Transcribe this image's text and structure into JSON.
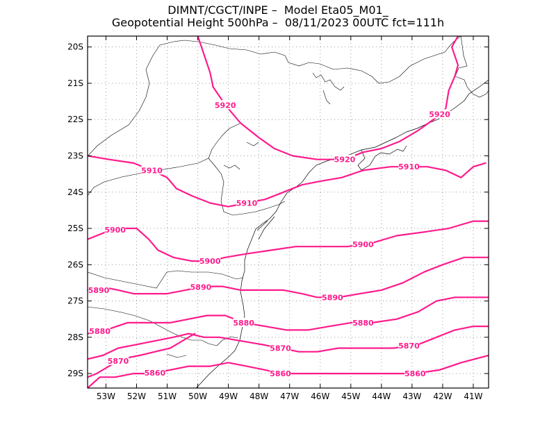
{
  "header": {
    "line1": "DIMNT/CGCT/INPE –  Model Eta05_M01_",
    "line2": "Geopotential Height 500hPa –  08/11/2023 00UTC fct=111h"
  },
  "colors": {
    "contour": "#ff1a8c",
    "coast": "#000000",
    "grid": "#999999"
  },
  "chart_data": {
    "type": "contour-map",
    "title": "Geopotential Height 500hPa",
    "lon_range": [
      -53.6,
      -40.5
    ],
    "lat_range": [
      -29.4,
      -19.7
    ],
    "x_ticks": [
      "53W",
      "52W",
      "51W",
      "50W",
      "49W",
      "48W",
      "47W",
      "46W",
      "45W",
      "44W",
      "43W",
      "42W",
      "41W"
    ],
    "y_ticks": [
      "20S",
      "21S",
      "22S",
      "23S",
      "24S",
      "25S",
      "26S",
      "27S",
      "28S",
      "29S"
    ],
    "contours": [
      {
        "level": 5920,
        "labels": [
          "5920",
          "5920",
          "5920"
        ],
        "points": [
          [
            -50.0,
            -19.7
          ],
          [
            -49.8,
            -20.2
          ],
          [
            -49.6,
            -20.7
          ],
          [
            -49.5,
            -21.1
          ],
          [
            -49.1,
            -21.6
          ],
          [
            -48.6,
            -22.1
          ],
          [
            -48.0,
            -22.5
          ],
          [
            -47.5,
            -22.8
          ],
          [
            -46.9,
            -23.0
          ],
          [
            -46.1,
            -23.1
          ],
          [
            -45.2,
            -23.1
          ],
          [
            -44.6,
            -22.9
          ],
          [
            -44.0,
            -22.8
          ],
          [
            -43.4,
            -22.6
          ],
          [
            -42.8,
            -22.3
          ],
          [
            -42.3,
            -22.0
          ],
          [
            -41.9,
            -21.7
          ],
          [
            -41.8,
            -21.2
          ],
          [
            -41.6,
            -20.8
          ],
          [
            -41.5,
            -20.5
          ],
          [
            -41.7,
            -20.0
          ],
          [
            -41.5,
            -19.7
          ]
        ],
        "label_lon": [
          -49.1,
          -45.2,
          -42.1
        ]
      },
      {
        "level": 5910,
        "labels": [
          "5910",
          "5910",
          "5910"
        ],
        "points": [
          [
            -53.6,
            -23.0
          ],
          [
            -52.9,
            -23.1
          ],
          [
            -52.1,
            -23.2
          ],
          [
            -51.5,
            -23.4
          ],
          [
            -51.0,
            -23.6
          ],
          [
            -50.7,
            -23.9
          ],
          [
            -50.2,
            -24.1
          ],
          [
            -49.6,
            -24.3
          ],
          [
            -49.0,
            -24.4
          ],
          [
            -48.4,
            -24.3
          ],
          [
            -47.8,
            -24.2
          ],
          [
            -47.2,
            -24.0
          ],
          [
            -46.6,
            -23.8
          ],
          [
            -46.0,
            -23.7
          ],
          [
            -45.3,
            -23.6
          ],
          [
            -44.6,
            -23.4
          ],
          [
            -43.7,
            -23.3
          ],
          [
            -43.1,
            -23.3
          ],
          [
            -42.5,
            -23.3
          ],
          [
            -41.9,
            -23.4
          ],
          [
            -41.4,
            -23.6
          ],
          [
            -41.0,
            -23.3
          ],
          [
            -40.6,
            -23.2
          ]
        ],
        "label_lon": [
          -51.5,
          -48.4,
          -43.1
        ]
      },
      {
        "level": 5900,
        "labels": [
          "5900",
          "5900",
          "5900"
        ],
        "points": [
          [
            -53.6,
            -25.3
          ],
          [
            -53.0,
            -25.1
          ],
          [
            -52.5,
            -25.0
          ],
          [
            -52.0,
            -25.0
          ],
          [
            -51.6,
            -25.3
          ],
          [
            -51.3,
            -25.6
          ],
          [
            -50.8,
            -25.8
          ],
          [
            -50.2,
            -25.9
          ],
          [
            -49.6,
            -25.9
          ],
          [
            -49.1,
            -25.8
          ],
          [
            -48.4,
            -25.7
          ],
          [
            -47.6,
            -25.6
          ],
          [
            -46.8,
            -25.5
          ],
          [
            -46.0,
            -25.5
          ],
          [
            -45.1,
            -25.5
          ],
          [
            -44.3,
            -25.4
          ],
          [
            -43.5,
            -25.2
          ],
          [
            -42.6,
            -25.1
          ],
          [
            -41.8,
            -25.0
          ],
          [
            -41.0,
            -24.8
          ],
          [
            -40.5,
            -24.8
          ]
        ],
        "label_lon": [
          -52.7,
          -49.6,
          -44.6
        ]
      },
      {
        "level": 5890,
        "labels": [
          "5890",
          "5890",
          "5890"
        ],
        "points": [
          [
            -53.6,
            -26.7
          ],
          [
            -53.2,
            -26.6
          ],
          [
            -52.6,
            -26.7
          ],
          [
            -52.1,
            -26.8
          ],
          [
            -51.6,
            -26.8
          ],
          [
            -51.0,
            -26.8
          ],
          [
            -50.4,
            -26.7
          ],
          [
            -49.8,
            -26.6
          ],
          [
            -49.2,
            -26.6
          ],
          [
            -48.6,
            -26.7
          ],
          [
            -47.9,
            -26.7
          ],
          [
            -47.2,
            -26.7
          ],
          [
            -46.6,
            -26.8
          ],
          [
            -46.1,
            -26.9
          ],
          [
            -45.4,
            -26.9
          ],
          [
            -44.7,
            -26.8
          ],
          [
            -44.0,
            -26.7
          ],
          [
            -43.3,
            -26.5
          ],
          [
            -42.6,
            -26.2
          ],
          [
            -42.0,
            -26.0
          ],
          [
            -41.3,
            -25.8
          ],
          [
            -40.5,
            -25.8
          ]
        ],
        "label_lon": [
          -53.6,
          -49.9,
          -45.6
        ]
      },
      {
        "level": 5880,
        "labels": [
          "5880",
          "5880",
          "5880"
        ],
        "points": [
          [
            -53.6,
            -27.9
          ],
          [
            -53.0,
            -27.8
          ],
          [
            -52.3,
            -27.6
          ],
          [
            -51.6,
            -27.6
          ],
          [
            -50.9,
            -27.6
          ],
          [
            -50.3,
            -27.5
          ],
          [
            -49.7,
            -27.4
          ],
          [
            -49.1,
            -27.4
          ],
          [
            -48.5,
            -27.6
          ],
          [
            -47.8,
            -27.7
          ],
          [
            -47.1,
            -27.8
          ],
          [
            -46.4,
            -27.8
          ],
          [
            -45.7,
            -27.7
          ],
          [
            -45.0,
            -27.6
          ],
          [
            -44.3,
            -27.6
          ],
          [
            -43.5,
            -27.5
          ],
          [
            -42.8,
            -27.3
          ],
          [
            -42.2,
            -27.0
          ],
          [
            -41.6,
            -26.9
          ],
          [
            -40.5,
            -26.9
          ]
        ],
        "label_lon": [
          -53.2,
          -48.5,
          -44.6
        ]
      },
      {
        "level": 5870,
        "labels": [
          "5870",
          "5870"
        ],
        "points": [
          [
            -53.6,
            -28.6
          ],
          [
            -53.1,
            -28.5
          ],
          [
            -52.6,
            -28.3
          ],
          [
            -52.0,
            -28.2
          ],
          [
            -51.4,
            -28.1
          ],
          [
            -50.8,
            -28.0
          ],
          [
            -50.3,
            -27.9
          ],
          [
            -49.8,
            -28.0
          ],
          [
            -49.3,
            -28.0
          ],
          [
            -48.6,
            -28.1
          ],
          [
            -47.9,
            -28.2
          ],
          [
            -47.3,
            -28.3
          ],
          [
            -46.7,
            -28.4
          ],
          [
            -46.1,
            -28.4
          ],
          [
            -45.4,
            -28.3
          ],
          [
            -44.5,
            -28.3
          ],
          [
            -43.6,
            -28.3
          ],
          [
            -42.8,
            -28.2
          ],
          [
            -42.2,
            -28.0
          ],
          [
            -41.6,
            -27.8
          ],
          [
            -41.0,
            -27.7
          ],
          [
            -40.5,
            -27.7
          ]
        ],
        "label_lon": [
          -47.3,
          -43.1
        ]
      },
      {
        "level": 5870,
        "labels": [
          "5870"
        ],
        "points": [
          [
            -53.6,
            -29.1
          ],
          [
            -53.3,
            -29.0
          ],
          [
            -52.9,
            -28.8
          ],
          [
            -52.5,
            -28.6
          ],
          [
            -51.9,
            -28.5
          ],
          [
            -51.4,
            -28.4
          ],
          [
            -50.9,
            -28.3
          ],
          [
            -50.5,
            -28.1
          ],
          [
            -50.1,
            -27.9
          ]
        ],
        "label_lon": [
          -52.6
        ]
      },
      {
        "level": 5860,
        "labels": [
          "5860",
          "5860",
          "5860"
        ],
        "points": [
          [
            -53.6,
            -29.4
          ],
          [
            -53.2,
            -29.1
          ],
          [
            -52.7,
            -29.1
          ],
          [
            -52.1,
            -29.0
          ],
          [
            -51.5,
            -29.0
          ],
          [
            -50.9,
            -28.9
          ],
          [
            -50.3,
            -28.8
          ],
          [
            -49.6,
            -28.8
          ],
          [
            -49.0,
            -28.7
          ],
          [
            -48.4,
            -28.8
          ],
          [
            -47.8,
            -28.9
          ],
          [
            -47.3,
            -29.0
          ],
          [
            -46.6,
            -29.0
          ],
          [
            -45.9,
            -29.0
          ],
          [
            -45.2,
            -29.0
          ],
          [
            -44.5,
            -29.0
          ],
          [
            -43.6,
            -29.0
          ],
          [
            -42.9,
            -29.0
          ],
          [
            -42.1,
            -28.9
          ],
          [
            -41.4,
            -28.7
          ],
          [
            -40.5,
            -28.5
          ]
        ],
        "label_lon": [
          -51.4,
          -47.3,
          -42.9
        ]
      }
    ]
  }
}
